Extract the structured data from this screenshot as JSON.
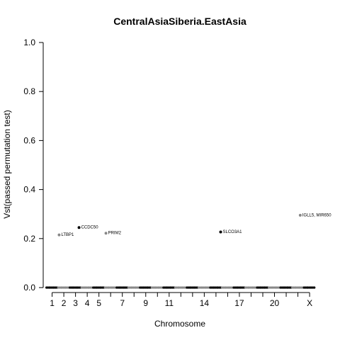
{
  "chart_data": {
    "type": "scatter",
    "title": "CentralAsiaSiberia.EastAsia",
    "xlabel": "Chromosome",
    "ylabel": "Vst(passed permutation test)",
    "ylim": [
      0,
      1.0
    ],
    "yticks": [
      "0.0",
      "0.2",
      "0.4",
      "0.6",
      "0.8",
      "1.0"
    ],
    "xticks": [
      "1",
      "2",
      "3",
      "4",
      "5",
      "7",
      "9",
      "11",
      "14",
      "17",
      "20",
      "X"
    ],
    "xlim": [
      0.3,
      23.6
    ],
    "chromosomes": [
      "1",
      "2",
      "3",
      "4",
      "5",
      "6",
      "7",
      "8",
      "9",
      "10",
      "11",
      "12",
      "13",
      "14",
      "15",
      "16",
      "17",
      "18",
      "19",
      "20",
      "21",
      "22",
      "X"
    ],
    "highlighted_points": [
      {
        "label": "LTBP1",
        "chrom": "2",
        "x": 1.6,
        "y": 0.215,
        "color": "#888888"
      },
      {
        "label": "CCDC50",
        "chrom": "3",
        "x": 3.3,
        "y": 0.245,
        "color": "#000000"
      },
      {
        "label": "PRIM2",
        "chrom": "6",
        "x": 5.6,
        "y": 0.222,
        "color": "#888888"
      },
      {
        "label": "SLCO3A1",
        "chrom": "15",
        "x": 15.4,
        "y": 0.227,
        "color": "#000000"
      },
      {
        "label": "IGLL5, MIR650",
        "chrom": "22",
        "x": 22.2,
        "y": 0.295,
        "color": "#888888"
      }
    ],
    "baseline_value": 0.0,
    "colors": {
      "odd_chrom": "#000000",
      "even_chrom": "#888888"
    },
    "grid": false,
    "legend": "none"
  }
}
